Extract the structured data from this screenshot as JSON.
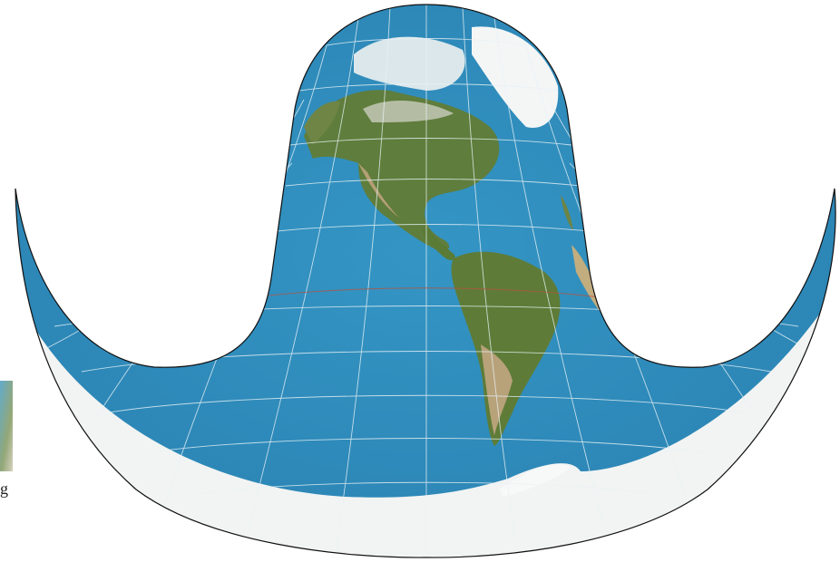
{
  "map": {
    "projection_shape": "cusped-bowl",
    "colors": {
      "ocean": "#2f8cbd",
      "land_green": "#5b7a3a",
      "land_dry": "#b9a27a",
      "ice": "#f2f4f3",
      "graticule": "#e8f2f6",
      "equator": "#b5543f",
      "outline": "#111111"
    }
  },
  "stray_text": "g"
}
